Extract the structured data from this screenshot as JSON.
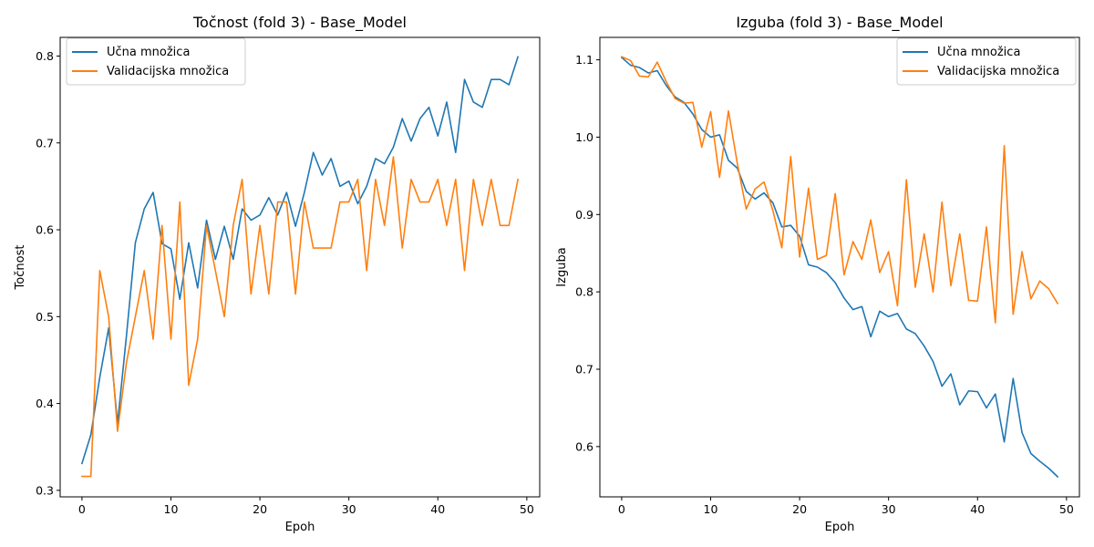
{
  "chart_data": [
    {
      "type": "line",
      "title": "Točnost (fold 3) - Base_Model",
      "xlabel": "Epoh",
      "ylabel": "Točnost",
      "xlim": [
        -2.45,
        51.45
      ],
      "ylim": [
        0.2925,
        0.8215
      ],
      "xticks": [
        0,
        10,
        20,
        30,
        40,
        50
      ],
      "yticks": [
        0.3,
        0.4,
        0.5,
        0.6,
        0.7,
        0.8
      ],
      "legend_location": "upper left",
      "grid": false,
      "x": [
        0,
        1,
        2,
        3,
        4,
        5,
        6,
        7,
        8,
        9,
        10,
        11,
        12,
        13,
        14,
        15,
        16,
        17,
        18,
        19,
        20,
        21,
        22,
        23,
        24,
        25,
        26,
        27,
        28,
        29,
        30,
        31,
        32,
        33,
        34,
        35,
        36,
        37,
        38,
        39,
        40,
        41,
        42,
        43,
        44,
        45,
        46,
        47,
        48,
        49
      ],
      "series": [
        {
          "name": "Učna množica",
          "color": "#1f77b4",
          "values": [
            0.331,
            0.364,
            0.43,
            0.487,
            0.377,
            0.478,
            0.585,
            0.624,
            0.643,
            0.584,
            0.578,
            0.52,
            0.585,
            0.533,
            0.611,
            0.566,
            0.604,
            0.566,
            0.624,
            0.611,
            0.617,
            0.637,
            0.617,
            0.643,
            0.604,
            0.643,
            0.689,
            0.663,
            0.682,
            0.65,
            0.656,
            0.63,
            0.65,
            0.682,
            0.676,
            0.695,
            0.728,
            0.702,
            0.728,
            0.741,
            0.708,
            0.747,
            0.689,
            0.773,
            0.747,
            0.741,
            0.773,
            0.773,
            0.767,
            0.799
          ]
        },
        {
          "name": "Validacijska množica",
          "color": "#ff7f0e",
          "values": [
            0.316,
            0.316,
            0.553,
            0.5,
            0.368,
            0.447,
            0.5,
            0.553,
            0.474,
            0.605,
            0.474,
            0.632,
            0.421,
            0.474,
            0.605,
            0.553,
            0.5,
            0.605,
            0.658,
            0.526,
            0.605,
            0.526,
            0.632,
            0.632,
            0.526,
            0.632,
            0.579,
            0.579,
            0.579,
            0.632,
            0.632,
            0.658,
            0.553,
            0.658,
            0.605,
            0.684,
            0.579,
            0.658,
            0.632,
            0.632,
            0.658,
            0.605,
            0.658,
            0.553,
            0.658,
            0.605,
            0.658,
            0.605,
            0.605,
            0.658
          ]
        }
      ]
    },
    {
      "type": "line",
      "title": "Izguba (fold 3) - Base_Model",
      "xlabel": "Epoh",
      "ylabel": "Izguba",
      "xlim": [
        -2.45,
        51.45
      ],
      "ylim": [
        0.535,
        1.129
      ],
      "xticks": [
        0,
        10,
        20,
        30,
        40,
        50
      ],
      "yticks": [
        0.6,
        0.7,
        0.8,
        0.9,
        1.0,
        1.1
      ],
      "legend_location": "upper right",
      "grid": false,
      "x": [
        0,
        1,
        2,
        3,
        4,
        5,
        6,
        7,
        8,
        9,
        10,
        11,
        12,
        13,
        14,
        15,
        16,
        17,
        18,
        19,
        20,
        21,
        22,
        23,
        24,
        25,
        26,
        27,
        28,
        29,
        30,
        31,
        32,
        33,
        34,
        35,
        36,
        37,
        38,
        39,
        40,
        41,
        42,
        43,
        44,
        45,
        46,
        47,
        48,
        49
      ],
      "series": [
        {
          "name": "Učna množica",
          "color": "#1f77b4",
          "values": [
            1.103,
            1.093,
            1.09,
            1.083,
            1.086,
            1.067,
            1.052,
            1.045,
            1.03,
            1.01,
            1.0,
            1.003,
            0.97,
            0.96,
            0.93,
            0.92,
            0.928,
            0.915,
            0.884,
            0.886,
            0.872,
            0.835,
            0.832,
            0.825,
            0.812,
            0.792,
            0.777,
            0.781,
            0.742,
            0.775,
            0.768,
            0.772,
            0.752,
            0.746,
            0.73,
            0.71,
            0.678,
            0.694,
            0.654,
            0.672,
            0.671,
            0.65,
            0.668,
            0.606,
            0.688,
            0.618,
            0.591,
            0.581,
            0.572,
            0.561
          ]
        },
        {
          "name": "Validacijska množica",
          "color": "#ff7f0e",
          "values": [
            1.104,
            1.099,
            1.079,
            1.078,
            1.097,
            1.072,
            1.05,
            1.044,
            1.045,
            0.987,
            1.033,
            0.948,
            1.034,
            0.966,
            0.907,
            0.933,
            0.942,
            0.905,
            0.857,
            0.975,
            0.845,
            0.934,
            0.842,
            0.847,
            0.927,
            0.822,
            0.865,
            0.842,
            0.893,
            0.825,
            0.852,
            0.782,
            0.945,
            0.806,
            0.875,
            0.8,
            0.916,
            0.808,
            0.875,
            0.789,
            0.788,
            0.884,
            0.76,
            0.989,
            0.771,
            0.852,
            0.791,
            0.814,
            0.804,
            0.785
          ]
        }
      ]
    }
  ]
}
